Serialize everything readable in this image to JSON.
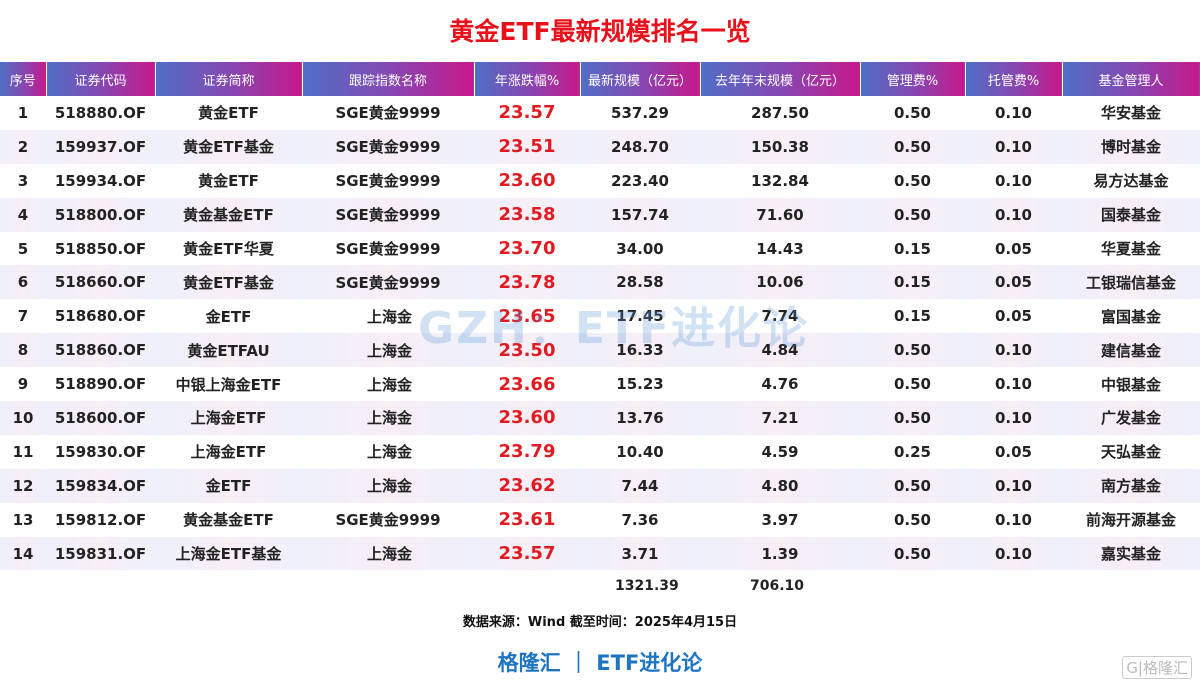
{
  "title": "黄金ETF最新规模排名一览",
  "headers": [
    "序号",
    "证券代码",
    "证券简称",
    "跟踪指数名称",
    "年涨跌幅%",
    "最新规模（亿元）",
    "去年年末规模（亿元）",
    "管理费%",
    "托管费%",
    "基金管理人"
  ],
  "rows": [
    [
      "1",
      "518880.OF",
      "黄金ETF",
      "SGE黄金9999",
      "23.57",
      "537.29",
      "287.50",
      "0.50",
      "0.10",
      "华安基金"
    ],
    [
      "2",
      "159937.OF",
      "黄金ETF基金",
      "SGE黄金9999",
      "23.51",
      "248.70",
      "150.38",
      "0.50",
      "0.10",
      "博时基金"
    ],
    [
      "3",
      "159934.OF",
      "黄金ETF",
      "SGE黄金9999",
      "23.60",
      "223.40",
      "132.84",
      "0.50",
      "0.10",
      "易方达基金"
    ],
    [
      "4",
      "518800.OF",
      "黄金基金ETF",
      "SGE黄金9999",
      "23.58",
      "157.74",
      "71.60",
      "0.50",
      "0.10",
      "国泰基金"
    ],
    [
      "5",
      "518850.OF",
      "黄金ETF华夏",
      "SGE黄金9999",
      "23.70",
      "34.00",
      "14.43",
      "0.15",
      "0.05",
      "华夏基金"
    ],
    [
      "6",
      "518660.OF",
      "黄金ETF基金",
      "SGE黄金9999",
      "23.78",
      "28.58",
      "10.06",
      "0.15",
      "0.05",
      "工银瑞信基金"
    ],
    [
      "7",
      "518680.OF",
      "金ETF",
      "上海金",
      "23.65",
      "17.45",
      "7.74",
      "0.15",
      "0.05",
      "富国基金"
    ],
    [
      "8",
      "518860.OF",
      "黄金ETFAU",
      "上海金",
      "23.50",
      "16.33",
      "4.84",
      "0.50",
      "0.10",
      "建信基金"
    ],
    [
      "9",
      "518890.OF",
      "中银上海金ETF",
      "上海金",
      "23.66",
      "15.23",
      "4.76",
      "0.50",
      "0.10",
      "中银基金"
    ],
    [
      "10",
      "518600.OF",
      "上海金ETF",
      "上海金",
      "23.60",
      "13.76",
      "7.21",
      "0.50",
      "0.10",
      "广发基金"
    ],
    [
      "11",
      "159830.OF",
      "上海金ETF",
      "上海金",
      "23.79",
      "10.40",
      "4.59",
      "0.25",
      "0.05",
      "天弘基金"
    ],
    [
      "12",
      "159834.OF",
      "金ETF",
      "上海金",
      "23.62",
      "7.44",
      "4.80",
      "0.50",
      "0.10",
      "南方基金"
    ],
    [
      "13",
      "159812.OF",
      "黄金基金ETF",
      "SGE黄金9999",
      "23.61",
      "7.36",
      "3.97",
      "0.50",
      "0.10",
      "前海开源基金"
    ],
    [
      "14",
      "159831.OF",
      "上海金ETF基金",
      "上海金",
      "23.57",
      "3.71",
      "1.39",
      "0.50",
      "0.10",
      "嘉实基金"
    ]
  ],
  "totals": {
    "latest": "1321.39",
    "last_year": "706.10"
  },
  "watermark": "GZH：ETF进化论",
  "source": "数据来源：Wind 截至时间：2025年4月15日",
  "brand": "格隆汇 ｜ ETF进化论",
  "logo": "格隆汇",
  "colors": {
    "title": "#e8101a",
    "change": "#e01b22",
    "brand": "#1f74c0"
  }
}
